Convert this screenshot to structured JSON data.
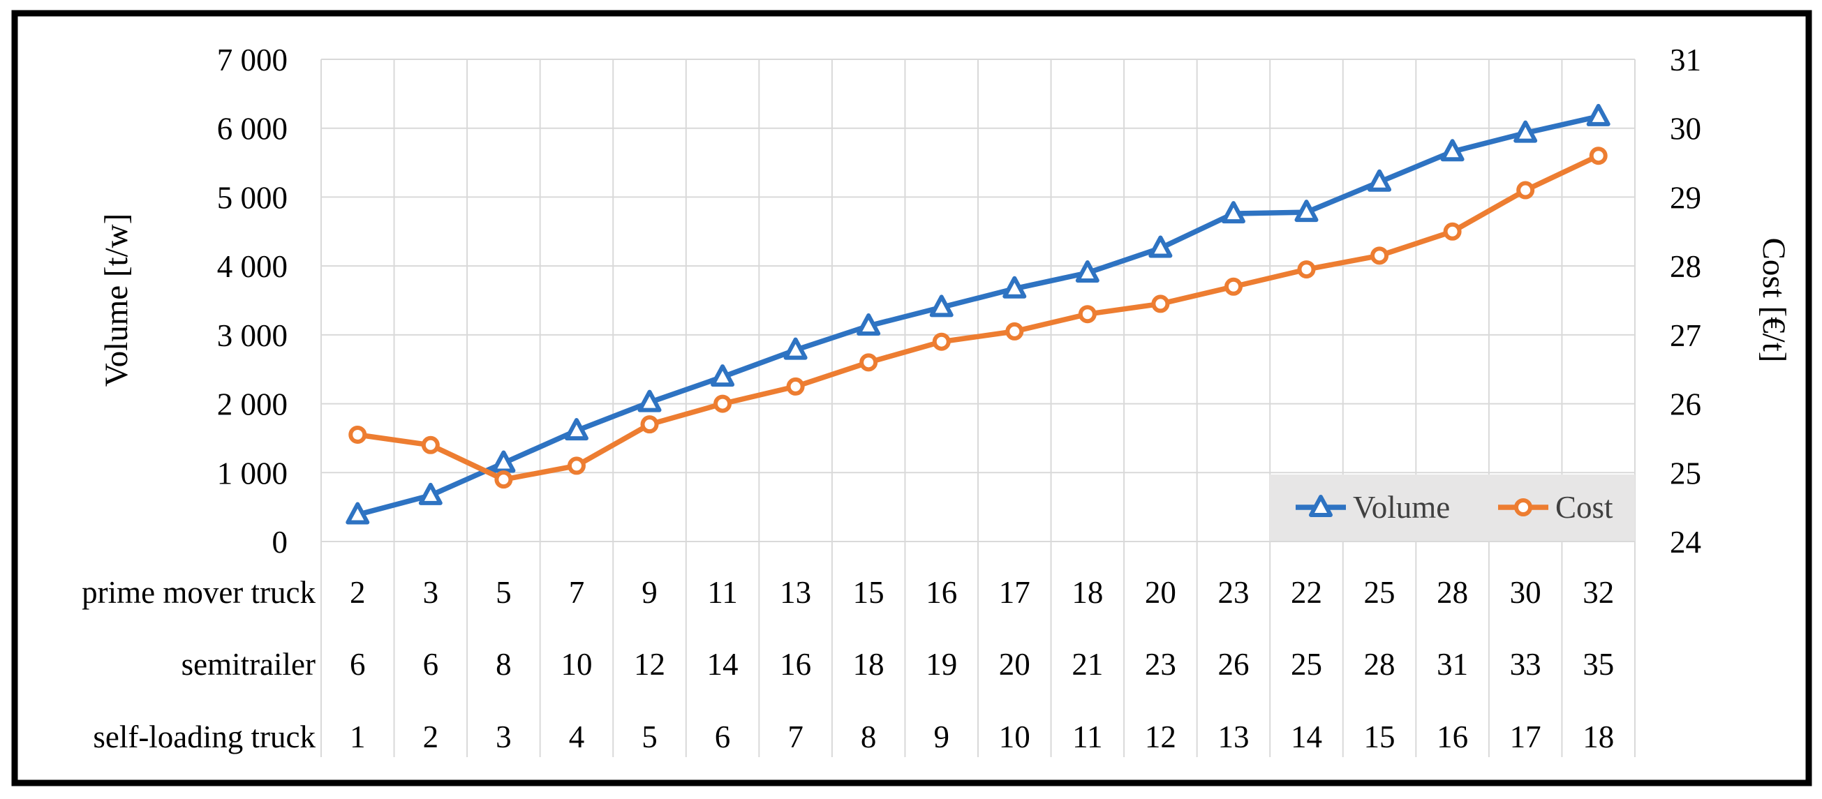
{
  "chart_data": {
    "type": "line",
    "title": "",
    "x_count": 18,
    "series": [
      {
        "name": "Volume",
        "axis": "left",
        "marker": "triangle",
        "color": "#2e73c2",
        "values": [
          390,
          670,
          1140,
          1610,
          2020,
          2390,
          2780,
          3130,
          3400,
          3670,
          3900,
          4260,
          4760,
          4780,
          5220,
          5660,
          5930,
          6170
        ]
      },
      {
        "name": "Cost",
        "axis": "right",
        "marker": "circle",
        "color": "#ed7d31",
        "values": [
          25.55,
          25.4,
          24.9,
          25.1,
          25.7,
          26.0,
          26.25,
          26.6,
          26.9,
          27.05,
          27.3,
          27.45,
          27.7,
          27.95,
          28.15,
          28.5,
          29.1,
          29.6
        ]
      }
    ],
    "left_axis": {
      "label": "Volume [t/w]",
      "min": 0,
      "max": 7000,
      "tick_step": 1000,
      "ticks": [
        "7 000",
        "6 000",
        "5 000",
        "4 000",
        "3 000",
        "2 000",
        "1 000",
        "0"
      ]
    },
    "right_axis": {
      "label": "Cost [€/t]",
      "min": 24,
      "max": 31,
      "tick_step": 1,
      "ticks": [
        "31",
        "30",
        "29",
        "28",
        "27",
        "26",
        "25",
        "24"
      ]
    },
    "category_table": {
      "rows": [
        {
          "label": "prime mover truck",
          "values": [
            "2",
            "3",
            "5",
            "7",
            "9",
            "11",
            "13",
            "15",
            "16",
            "17",
            "18",
            "20",
            "23",
            "22",
            "25",
            "28",
            "30",
            "32"
          ]
        },
        {
          "label": "semitrailer",
          "values": [
            "6",
            "6",
            "8",
            "10",
            "12",
            "14",
            "16",
            "18",
            "19",
            "20",
            "21",
            "23",
            "26",
            "25",
            "28",
            "31",
            "33",
            "35"
          ]
        },
        {
          "label": "self-loading truck",
          "values": [
            "1",
            "2",
            "3",
            "4",
            "5",
            "6",
            "7",
            "8",
            "9",
            "10",
            "11",
            "12",
            "13",
            "14",
            "15",
            "16",
            "17",
            "18"
          ]
        }
      ]
    },
    "legend": {
      "position": "inside-bottom-right",
      "background": "#e7e6e6",
      "entries": [
        {
          "label": "Volume",
          "marker": "triangle",
          "color": "#2e73c2"
        },
        {
          "label": "Cost",
          "marker": "circle",
          "color": "#ed7d31"
        }
      ]
    },
    "grid": true,
    "colors": {
      "gridline": "#d9d9d9",
      "frame": "#000000",
      "text": "#000000",
      "legend_text": "#404040",
      "background": "#ffffff"
    }
  }
}
